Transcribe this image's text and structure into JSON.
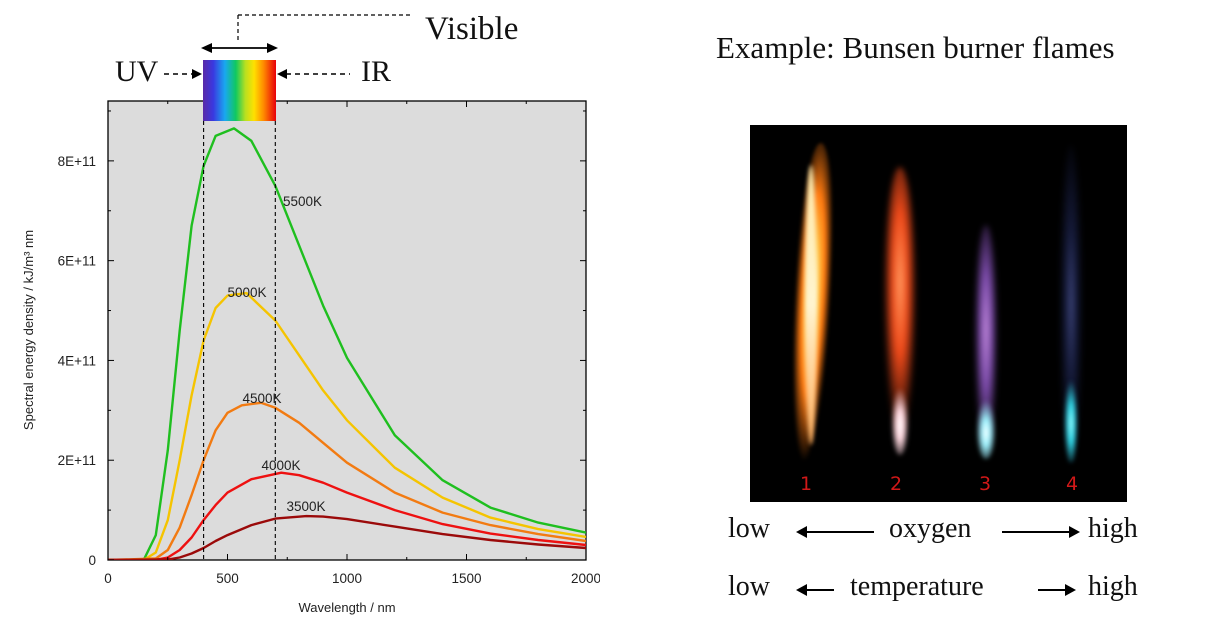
{
  "chart_data": {
    "type": "line",
    "xlabel": "Wavelength / nm",
    "ylabel": "Spectral energy density / kJ/m³ nm",
    "xlim": [
      0,
      2000
    ],
    "ylim": [
      0,
      920000000000.0
    ],
    "x_ticks": [
      {
        "value": 0,
        "label": "0"
      },
      {
        "value": 500,
        "label": "500"
      },
      {
        "value": 1000,
        "label": "1000"
      },
      {
        "value": 1500,
        "label": "1500"
      },
      {
        "value": 2000,
        "label": "2000"
      }
    ],
    "y_ticks": [
      {
        "value": 0,
        "label": "0"
      },
      {
        "value": 200000000000.0,
        "label": "2E+11"
      },
      {
        "value": 400000000000.0,
        "label": "4E+11"
      },
      {
        "value": 600000000000.0,
        "label": "6E+11"
      },
      {
        "value": 800000000000.0,
        "label": "8E+11"
      }
    ],
    "grid": false,
    "series": [
      {
        "name": "5500K",
        "temperature": 5500,
        "color": "#1fbf1f",
        "points": [
          [
            150,
            500000000.0
          ],
          [
            200,
            50000000000.0
          ],
          [
            250,
            220000000000.0
          ],
          [
            300,
            460000000000.0
          ],
          [
            350,
            670000000000.0
          ],
          [
            400,
            790000000000.0
          ],
          [
            450,
            850000000000.0
          ],
          [
            527,
            865000000000.0
          ],
          [
            600,
            840000000000.0
          ],
          [
            700,
            750000000000.0
          ],
          [
            800,
            630000000000.0
          ],
          [
            900,
            510000000000.0
          ],
          [
            1000,
            405000000000.0
          ],
          [
            1200,
            250000000000.0
          ],
          [
            1400,
            160000000000.0
          ],
          [
            1600,
            105000000000.0
          ],
          [
            1800,
            75000000000.0
          ],
          [
            2000,
            55000000000.0
          ]
        ]
      },
      {
        "name": "5000K",
        "temperature": 5000,
        "color": "#f5c400",
        "points": [
          [
            150,
            200000000.0
          ],
          [
            200,
            15000000000.0
          ],
          [
            250,
            80000000000.0
          ],
          [
            300,
            200000000000.0
          ],
          [
            350,
            330000000000.0
          ],
          [
            400,
            440000000000.0
          ],
          [
            450,
            505000000000.0
          ],
          [
            500,
            530000000000.0
          ],
          [
            580,
            535000000000.0
          ],
          [
            700,
            480000000000.0
          ],
          [
            800,
            410000000000.0
          ],
          [
            900,
            340000000000.0
          ],
          [
            1000,
            280000000000.0
          ],
          [
            1200,
            185000000000.0
          ],
          [
            1400,
            125000000000.0
          ],
          [
            1600,
            85000000000.0
          ],
          [
            1800,
            62000000000.0
          ],
          [
            2000,
            46000000000.0
          ]
        ]
      },
      {
        "name": "4500K",
        "temperature": 4500,
        "color": "#f27b12",
        "points": [
          [
            200,
            3000000000.0
          ],
          [
            250,
            20000000000.0
          ],
          [
            300,
            65000000000.0
          ],
          [
            350,
            130000000000.0
          ],
          [
            400,
            200000000000.0
          ],
          [
            450,
            260000000000.0
          ],
          [
            500,
            295000000000.0
          ],
          [
            560,
            310000000000.0
          ],
          [
            640,
            315000000000.0
          ],
          [
            700,
            305000000000.0
          ],
          [
            800,
            275000000000.0
          ],
          [
            900,
            235000000000.0
          ],
          [
            1000,
            195000000000.0
          ],
          [
            1200,
            135000000000.0
          ],
          [
            1400,
            95000000000.0
          ],
          [
            1600,
            70000000000.0
          ],
          [
            1800,
            52000000000.0
          ],
          [
            2000,
            38000000000.0
          ]
        ]
      },
      {
        "name": "4000K",
        "temperature": 4000,
        "color": "#ee1111",
        "points": [
          [
            200,
            500000000.0
          ],
          [
            250,
            5000000000.0
          ],
          [
            300,
            20000000000.0
          ],
          [
            350,
            45000000000.0
          ],
          [
            400,
            80000000000.0
          ],
          [
            450,
            110000000000.0
          ],
          [
            500,
            135000000000.0
          ],
          [
            600,
            162000000000.0
          ],
          [
            725,
            175000000000.0
          ],
          [
            800,
            170000000000.0
          ],
          [
            900,
            155000000000.0
          ],
          [
            1000,
            135000000000.0
          ],
          [
            1200,
            100000000000.0
          ],
          [
            1400,
            72000000000.0
          ],
          [
            1600,
            53000000000.0
          ],
          [
            1800,
            40000000000.0
          ],
          [
            2000,
            30000000000.0
          ]
        ]
      },
      {
        "name": "3500K",
        "temperature": 3500,
        "color": "#9b0a0a",
        "points": [
          [
            250,
            1000000000.0
          ],
          [
            300,
            5000000000.0
          ],
          [
            350,
            13000000000.0
          ],
          [
            400,
            24000000000.0
          ],
          [
            450,
            38000000000.0
          ],
          [
            500,
            50000000000.0
          ],
          [
            600,
            70000000000.0
          ],
          [
            700,
            83000000000.0
          ],
          [
            830,
            88000000000.0
          ],
          [
            900,
            87000000000.0
          ],
          [
            1000,
            82000000000.0
          ],
          [
            1200,
            67000000000.0
          ],
          [
            1400,
            52000000000.0
          ],
          [
            1600,
            40000000000.0
          ],
          [
            1800,
            31000000000.0
          ],
          [
            2000,
            24000000000.0
          ]
        ]
      }
    ],
    "visible_band_nm": [
      400,
      700
    ]
  },
  "diagram": {
    "visible_label": "Visible",
    "uv_label": "UV",
    "ir_label": "IR"
  },
  "example": {
    "title": "Example: Bunsen burner flames",
    "flame_numbers": [
      "1",
      "2",
      "3",
      "4"
    ],
    "oxygen_row": {
      "left": "low",
      "middle": "oxygen",
      "right": "high"
    },
    "temperature_row": {
      "left": "low",
      "middle": "temperature",
      "right": "high"
    }
  }
}
